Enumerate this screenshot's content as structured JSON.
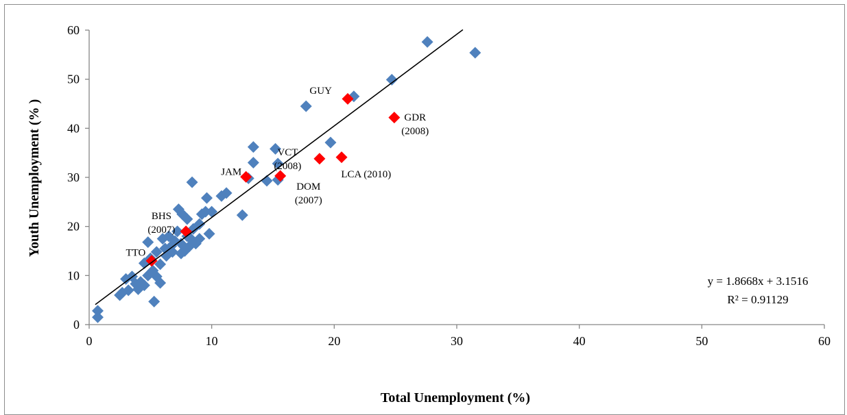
{
  "chart_data": {
    "type": "scatter",
    "title": "",
    "xlabel": "Total Unemployment (%)",
    "ylabel": "Youth Unemployment  (% )",
    "xlim": [
      0,
      60
    ],
    "ylim": [
      0,
      60
    ],
    "xticks": [
      0,
      10,
      20,
      30,
      40,
      50,
      60
    ],
    "yticks": [
      0,
      10,
      20,
      30,
      40,
      50,
      60
    ],
    "grid": false,
    "legend": "none",
    "colors": {
      "others": "#4f81bd",
      "highlighted": "#ff0000",
      "trendline": "#000000"
    },
    "series": [
      {
        "marker": "diamond",
        "color": "#4f81bd",
        "points": [
          [
            0.7,
            1.5
          ],
          [
            0.7,
            2.8
          ],
          [
            2.5,
            6.0
          ],
          [
            2.7,
            6.5
          ],
          [
            3.0,
            9.3
          ],
          [
            3.2,
            7.0
          ],
          [
            3.5,
            9.8
          ],
          [
            3.8,
            8.3
          ],
          [
            4.0,
            7.2
          ],
          [
            4.2,
            8.7
          ],
          [
            4.5,
            8.0
          ],
          [
            4.5,
            12.5
          ],
          [
            4.8,
            10.0
          ],
          [
            4.8,
            16.8
          ],
          [
            5.0,
            13.5
          ],
          [
            5.2,
            11.0
          ],
          [
            5.3,
            4.7
          ],
          [
            5.5,
            9.8
          ],
          [
            5.5,
            14.8
          ],
          [
            5.8,
            12.3
          ],
          [
            5.8,
            8.5
          ],
          [
            6.0,
            17.5
          ],
          [
            6.2,
            15.5
          ],
          [
            6.3,
            14.0
          ],
          [
            6.5,
            18.0
          ],
          [
            6.7,
            16.0
          ],
          [
            6.8,
            14.8
          ],
          [
            7.0,
            17.0
          ],
          [
            7.2,
            19.0
          ],
          [
            7.3,
            23.5
          ],
          [
            7.5,
            14.5
          ],
          [
            7.5,
            16.5
          ],
          [
            7.6,
            22.5
          ],
          [
            7.8,
            15.0
          ],
          [
            8.0,
            21.5
          ],
          [
            8.0,
            18.0
          ],
          [
            8.2,
            16.0
          ],
          [
            8.3,
            17.5
          ],
          [
            8.4,
            29.0
          ],
          [
            8.5,
            19.5
          ],
          [
            8.7,
            16.5
          ],
          [
            9.0,
            17.5
          ],
          [
            9.0,
            20.5
          ],
          [
            9.2,
            22.5
          ],
          [
            9.5,
            23.0
          ],
          [
            9.6,
            25.8
          ],
          [
            9.8,
            18.5
          ],
          [
            10.0,
            23.0
          ],
          [
            10.8,
            26.2
          ],
          [
            11.2,
            26.8
          ],
          [
            12.5,
            22.3
          ],
          [
            13.0,
            29.8
          ],
          [
            13.4,
            36.2
          ],
          [
            13.4,
            33.0
          ],
          [
            14.5,
            29.3
          ],
          [
            15.2,
            35.8
          ],
          [
            15.4,
            32.8
          ],
          [
            15.4,
            29.5
          ],
          [
            17.7,
            44.5
          ],
          [
            19.7,
            37.1
          ],
          [
            21.6,
            46.5
          ],
          [
            24.7,
            49.9
          ],
          [
            27.6,
            57.6
          ],
          [
            31.5,
            55.4
          ]
        ]
      },
      {
        "marker": "diamond",
        "color": "#ff0000",
        "points": [
          [
            5.1,
            13.0
          ],
          [
            7.9,
            19.0
          ],
          [
            12.8,
            30.1
          ],
          [
            15.6,
            30.3
          ],
          [
            18.8,
            33.8
          ],
          [
            20.6,
            34.1
          ],
          [
            21.1,
            46.0
          ],
          [
            24.9,
            42.2
          ]
        ]
      }
    ],
    "annotations": [
      {
        "lines": [
          "TTO"
        ],
        "x": 3.8,
        "y": 14.0
      },
      {
        "lines": [
          "BHS",
          "(2007)"
        ],
        "x": 5.9,
        "y": 21.5
      },
      {
        "lines": [
          "JAM"
        ],
        "x": 11.6,
        "y": 30.5
      },
      {
        "lines": [
          "VCT",
          "(2008)"
        ],
        "x": 16.2,
        "y": 34.5
      },
      {
        "lines": [
          "DOM",
          "(2007)"
        ],
        "x": 17.9,
        "y": 27.5
      },
      {
        "lines": [
          "LCA (2010)"
        ],
        "x": 22.6,
        "y": 30.0
      },
      {
        "lines": [
          "GUY"
        ],
        "x": 18.9,
        "y": 47.0
      },
      {
        "lines": [
          "GDR",
          "(2008)"
        ],
        "x": 26.6,
        "y": 41.6
      }
    ],
    "trendline": {
      "slope": 1.8668,
      "intercept": 3.1516,
      "x_range": [
        0.5,
        30.5
      ],
      "equation": "y = 1.8668x + 3.1516",
      "r_squared": "R² = 0.91129"
    }
  }
}
